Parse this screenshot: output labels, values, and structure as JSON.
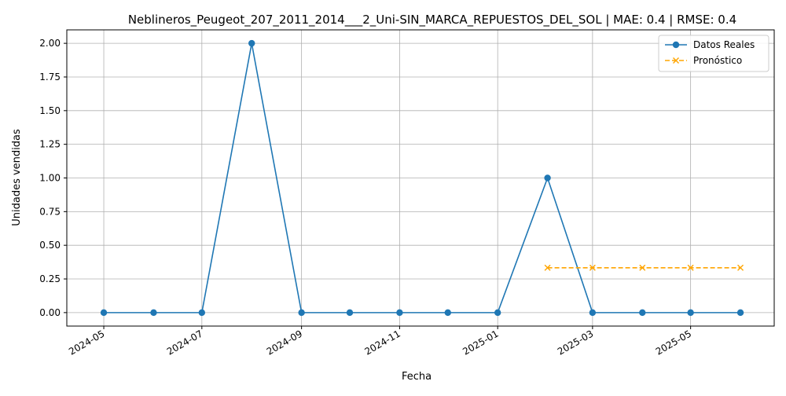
{
  "chart_data": {
    "type": "line",
    "title": "Neblineros_Peugeot_207_2011_2014___2_Uni-SIN_MARCA_REPUESTOS_DEL_SOL | MAE: 0.4 | RMSE: 0.4",
    "xlabel": "Fecha",
    "ylabel": "Unidades vendidas",
    "xlim": [
      "2024-04-08",
      "2025-06-22"
    ],
    "ylim": [
      -0.1,
      2.1
    ],
    "grid": true,
    "legend_position": "top-right",
    "x_ticks": [
      "2024-05",
      "2024-07",
      "2024-09",
      "2024-11",
      "2025-01",
      "2025-03",
      "2025-05"
    ],
    "y_ticks": [
      "0.00",
      "0.25",
      "0.50",
      "0.75",
      "1.00",
      "1.25",
      "1.50",
      "1.75",
      "2.00"
    ],
    "series": [
      {
        "name": "Datos Reales",
        "color": "#1f77b4",
        "marker": "circle",
        "line_style": "solid",
        "x": [
          "2024-05-01",
          "2024-06-01",
          "2024-07-01",
          "2024-08-01",
          "2024-09-01",
          "2024-10-01",
          "2024-11-01",
          "2024-12-01",
          "2025-01-01",
          "2025-02-01",
          "2025-03-01",
          "2025-04-01",
          "2025-05-01",
          "2025-06-01"
        ],
        "y": [
          0,
          0,
          0,
          2,
          0,
          0,
          0,
          0,
          0,
          1,
          0,
          0,
          0,
          0
        ]
      },
      {
        "name": "Pronóstico",
        "color": "#ffa500",
        "marker": "x",
        "line_style": "dashed",
        "x": [
          "2025-02-01",
          "2025-03-01",
          "2025-04-01",
          "2025-05-01",
          "2025-06-01"
        ],
        "y": [
          0.333,
          0.333,
          0.333,
          0.333,
          0.333
        ]
      }
    ]
  }
}
